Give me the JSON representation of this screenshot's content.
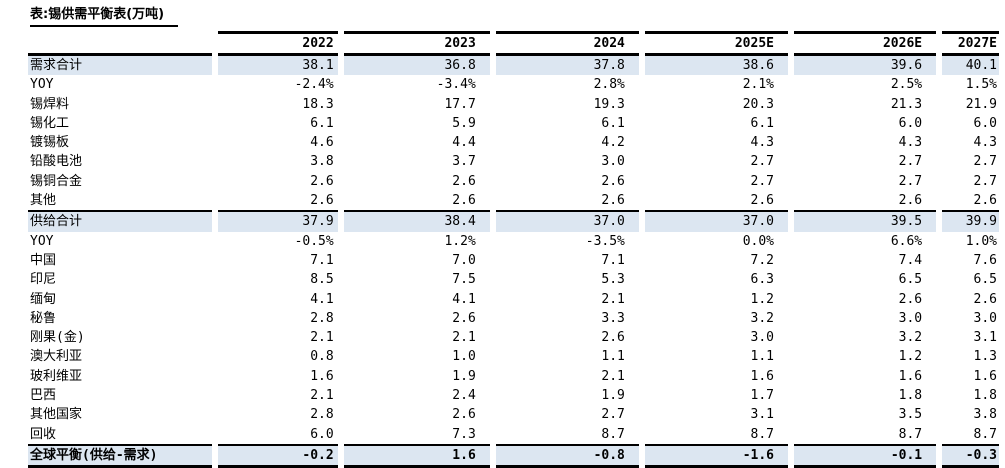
{
  "title": "表:锡供需平衡表(万吨)",
  "colors": {
    "highlight": "#dce6f1",
    "rule": "#000000",
    "text": "#000000"
  },
  "table": {
    "label_header": "",
    "columns": [
      "2022",
      "2023",
      "2024",
      "2025E",
      "2026E",
      "2027E"
    ],
    "rows": [
      {
        "label": "需求合计",
        "type": "total",
        "values": [
          "38.1",
          "36.8",
          "37.8",
          "38.6",
          "39.6",
          "40.1"
        ]
      },
      {
        "label": "YOY",
        "type": "item",
        "values": [
          "-2.4%",
          "-3.4%",
          "2.8%",
          "2.1%",
          "2.5%",
          "1.5%"
        ]
      },
      {
        "label": "锡焊料",
        "type": "item",
        "values": [
          "18.3",
          "17.7",
          "19.3",
          "20.3",
          "21.3",
          "21.9"
        ]
      },
      {
        "label": "锡化工",
        "type": "item",
        "values": [
          "6.1",
          "5.9",
          "6.1",
          "6.1",
          "6.0",
          "6.0"
        ]
      },
      {
        "label": "镀锡板",
        "type": "item",
        "values": [
          "4.6",
          "4.4",
          "4.2",
          "4.3",
          "4.3",
          "4.3"
        ]
      },
      {
        "label": "铅酸电池",
        "type": "item",
        "values": [
          "3.8",
          "3.7",
          "3.0",
          "2.7",
          "2.7",
          "2.7"
        ]
      },
      {
        "label": "锡铜合金",
        "type": "item",
        "values": [
          "2.6",
          "2.6",
          "2.6",
          "2.7",
          "2.7",
          "2.7"
        ]
      },
      {
        "label": "其他",
        "type": "item",
        "values": [
          "2.6",
          "2.6",
          "2.6",
          "2.6",
          "2.6",
          "2.6"
        ]
      },
      {
        "label": "供给合计",
        "type": "total",
        "values": [
          "37.9",
          "38.4",
          "37.0",
          "37.0",
          "39.5",
          "39.9"
        ]
      },
      {
        "label": "YOY",
        "type": "item",
        "values": [
          "-0.5%",
          "1.2%",
          "-3.5%",
          "0.0%",
          "6.6%",
          "1.0%"
        ]
      },
      {
        "label": "中国",
        "type": "item",
        "values": [
          "7.1",
          "7.0",
          "7.1",
          "7.2",
          "7.4",
          "7.6"
        ]
      },
      {
        "label": "印尼",
        "type": "item",
        "values": [
          "8.5",
          "7.5",
          "5.3",
          "6.3",
          "6.5",
          "6.5"
        ]
      },
      {
        "label": "缅甸",
        "type": "item",
        "values": [
          "4.1",
          "4.1",
          "2.1",
          "1.2",
          "2.6",
          "2.6"
        ]
      },
      {
        "label": "秘鲁",
        "type": "item",
        "values": [
          "2.8",
          "2.6",
          "3.3",
          "3.2",
          "3.0",
          "3.0"
        ]
      },
      {
        "label": "刚果(金)",
        "type": "item",
        "values": [
          "2.1",
          "2.1",
          "2.6",
          "3.0",
          "3.2",
          "3.1"
        ]
      },
      {
        "label": "澳大利亚",
        "type": "item",
        "values": [
          "0.8",
          "1.0",
          "1.1",
          "1.1",
          "1.2",
          "1.3"
        ]
      },
      {
        "label": "玻利维亚",
        "type": "item",
        "values": [
          "1.6",
          "1.9",
          "2.1",
          "1.6",
          "1.6",
          "1.6"
        ]
      },
      {
        "label": "巴西",
        "type": "item",
        "values": [
          "2.1",
          "2.4",
          "1.9",
          "1.7",
          "1.8",
          "1.8"
        ]
      },
      {
        "label": "其他国家",
        "type": "item",
        "values": [
          "2.8",
          "2.6",
          "2.7",
          "3.1",
          "3.5",
          "3.8"
        ]
      },
      {
        "label": "回收",
        "type": "item",
        "values": [
          "6.0",
          "7.3",
          "8.7",
          "8.7",
          "8.7",
          "8.7"
        ]
      },
      {
        "label": "全球平衡(供给-需求)",
        "type": "balance",
        "values": [
          "-0.2",
          "1.6",
          "-0.8",
          "-1.6",
          "-0.1",
          "-0.3"
        ]
      }
    ]
  }
}
